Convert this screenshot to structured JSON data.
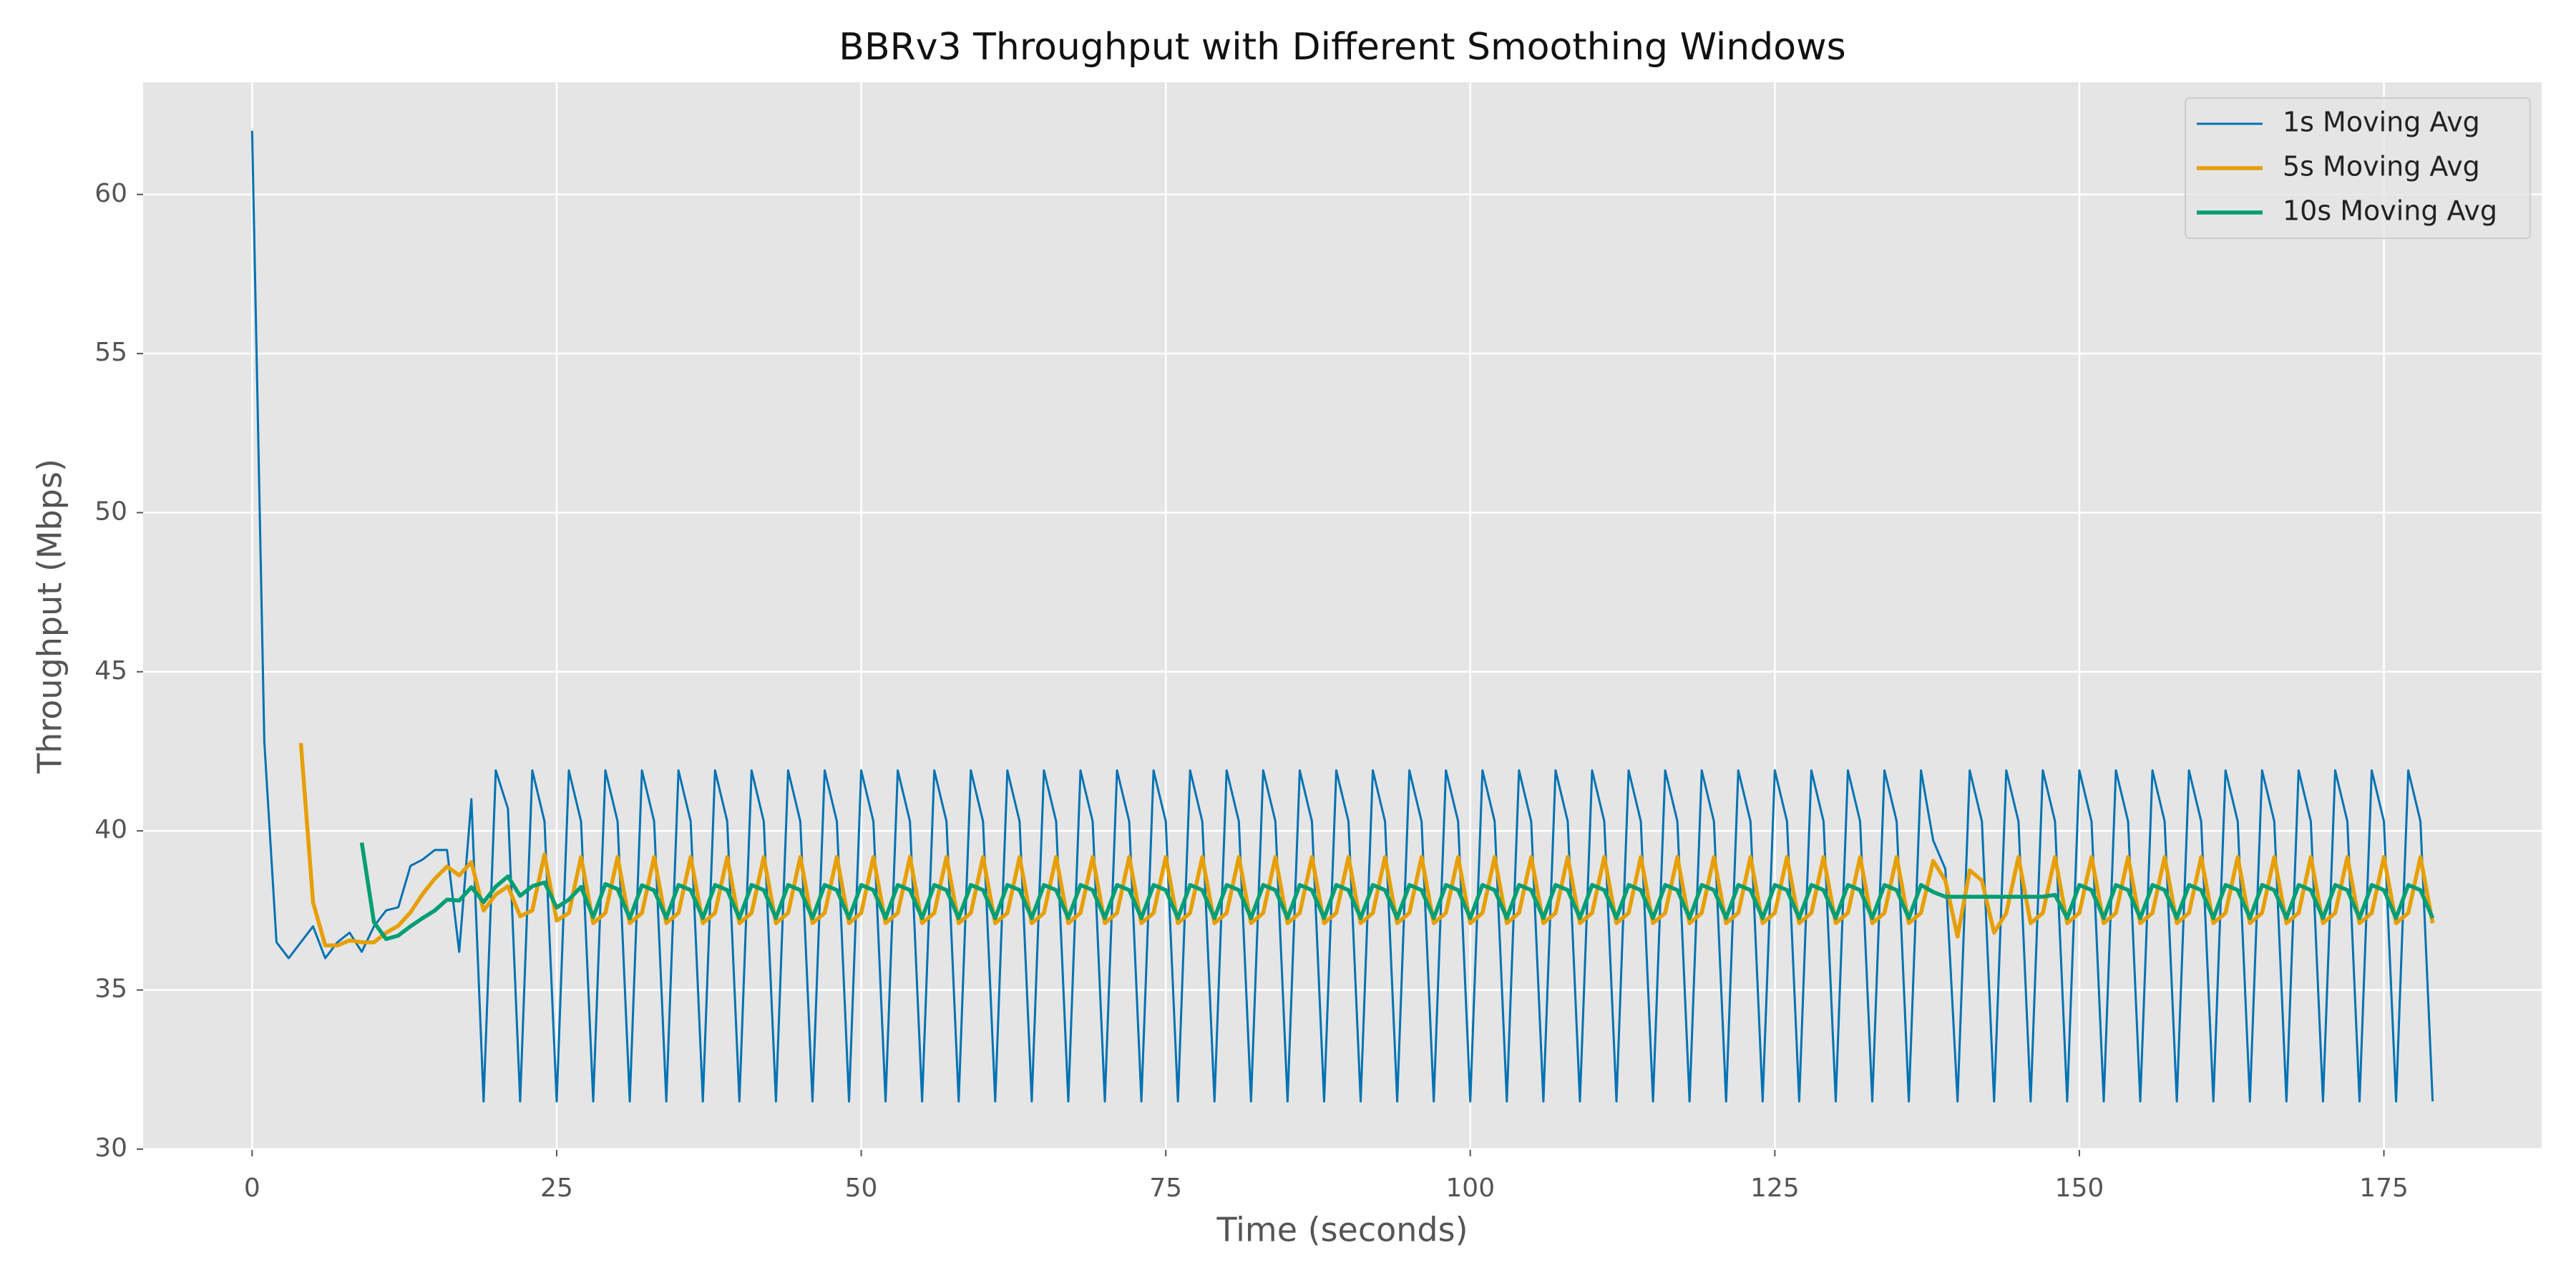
{
  "chart_data": {
    "type": "line",
    "title": "BBRv3 Throughput with Different Smoothing Windows",
    "x_label": "Time (seconds)",
    "y_label": "Throughput (Mbps)",
    "xlim": [
      -8.95,
      187.95
    ],
    "ylim": [
      29.975,
      63.525
    ],
    "xticks": [
      0,
      25,
      50,
      75,
      100,
      125,
      150,
      175
    ],
    "yticks": [
      30,
      35,
      40,
      45,
      50,
      55,
      60
    ],
    "grid": true,
    "legend": "upper right",
    "x": [
      0,
      1,
      2,
      3,
      4,
      5,
      6,
      7,
      8,
      9,
      10,
      11,
      12,
      13,
      14,
      15,
      16,
      17,
      18,
      19,
      20,
      21,
      22,
      23,
      24,
      25,
      26,
      27,
      28,
      29,
      30,
      31,
      32,
      33,
      34,
      35,
      36,
      37,
      38,
      39,
      40,
      41,
      42,
      43,
      44,
      45,
      46,
      47,
      48,
      49,
      50,
      51,
      52,
      53,
      54,
      55,
      56,
      57,
      58,
      59,
      60,
      61,
      62,
      63,
      64,
      65,
      66,
      67,
      68,
      69,
      70,
      71,
      72,
      73,
      74,
      75,
      76,
      77,
      78,
      79,
      80,
      81,
      82,
      83,
      84,
      85,
      86,
      87,
      88,
      89,
      90,
      91,
      92,
      93,
      94,
      95,
      96,
      97,
      98,
      99,
      100,
      101,
      102,
      103,
      104,
      105,
      106,
      107,
      108,
      109,
      110,
      111,
      112,
      113,
      114,
      115,
      116,
      117,
      118,
      119,
      120,
      121,
      122,
      123,
      124,
      125,
      126,
      127,
      128,
      129,
      130,
      131,
      132,
      133,
      134,
      135,
      136,
      137,
      138,
      139,
      140,
      141,
      142,
      143,
      144,
      145,
      146,
      147,
      148,
      149,
      150,
      151,
      152,
      153,
      154,
      155,
      156,
      157,
      158,
      159,
      160,
      161,
      162,
      163,
      164,
      165,
      166,
      167,
      168,
      169,
      170,
      171,
      172,
      173,
      174,
      175,
      176,
      177,
      178,
      179
    ],
    "series": [
      {
        "name": "1s Moving Avg",
        "color": "#0072B2",
        "values": [
          62,
          42.8,
          36.5,
          36,
          36.5,
          37,
          36,
          36.5,
          36.8,
          36.2,
          37,
          37.5,
          37.6,
          38.9,
          39.1,
          39.4,
          39.4,
          36.2,
          41,
          31.5,
          41.9,
          40.7,
          31.5,
          41.9,
          40.3,
          31.5,
          41.9,
          40.3,
          31.5,
          41.9,
          40.3,
          31.5,
          41.9,
          40.3,
          31.5,
          41.9,
          40.3,
          31.5,
          41.9,
          40.3,
          31.5,
          41.9,
          40.3,
          31.5,
          41.9,
          40.3,
          31.5,
          41.9,
          40.3,
          31.5,
          41.9,
          40.3,
          31.5,
          41.9,
          40.3,
          31.5,
          41.9,
          40.3,
          31.5,
          41.9,
          40.3,
          31.5,
          41.9,
          40.3,
          31.5,
          41.9,
          40.3,
          31.5,
          41.9,
          40.3,
          31.5,
          41.9,
          40.3,
          31.5,
          41.9,
          40.3,
          31.5,
          41.9,
          40.3,
          31.5,
          41.9,
          40.3,
          31.5,
          41.9,
          40.3,
          31.5,
          41.9,
          40.3,
          31.5,
          41.9,
          40.3,
          31.5,
          41.9,
          40.3,
          31.5,
          41.9,
          40.3,
          31.5,
          41.9,
          40.3,
          31.5,
          41.9,
          40.3,
          31.5,
          41.9,
          40.3,
          31.5,
          41.9,
          40.3,
          31.5,
          41.9,
          40.3,
          31.5,
          41.9,
          40.3,
          31.5,
          41.9,
          40.3,
          31.5,
          41.9,
          40.3,
          31.5,
          41.9,
          40.3,
          31.5,
          41.9,
          40.3,
          31.5,
          41.9,
          40.3,
          31.5,
          41.9,
          40.3,
          31.5,
          41.9,
          40.3,
          31.5,
          41.9,
          39.7,
          38.8,
          31.5,
          41.9,
          40.3,
          31.5,
          41.9,
          40.3,
          31.5,
          41.9,
          40.3,
          31.5,
          41.9,
          40.3,
          31.5,
          41.9,
          40.3,
          31.5,
          41.9,
          40.3,
          31.5,
          41.9,
          40.3,
          31.5,
          41.9,
          40.3,
          31.5,
          41.9,
          40.3,
          31.5,
          41.9,
          40.3,
          31.5,
          41.9,
          40.3,
          31.5,
          41.9,
          40.3,
          31.5,
          41.9,
          40.3,
          31.5
        ]
      },
      {
        "name": "5s Moving Avg",
        "color": "#E69F00",
        "values": [
          null,
          null,
          null,
          null,
          42.76,
          37.76,
          36.4,
          36.4,
          36.56,
          36.5,
          36.5,
          36.8,
          37.02,
          37.44,
          38.02,
          38.5,
          38.88,
          38.6,
          39.02,
          37.5,
          38,
          38.26,
          37.32,
          37.5,
          39.26,
          37.18,
          37.42,
          39.18,
          37.1,
          37.42,
          39.18,
          37.1,
          37.42,
          39.18,
          37.1,
          37.42,
          39.18,
          37.1,
          37.42,
          39.18,
          37.1,
          37.42,
          39.18,
          37.1,
          37.42,
          39.18,
          37.1,
          37.42,
          39.18,
          37.1,
          37.42,
          39.18,
          37.1,
          37.42,
          39.18,
          37.1,
          37.42,
          39.18,
          37.1,
          37.42,
          39.18,
          37.1,
          37.42,
          39.18,
          37.1,
          37.42,
          39.18,
          37.1,
          37.42,
          39.18,
          37.1,
          37.42,
          39.18,
          37.1,
          37.42,
          39.18,
          37.1,
          37.42,
          39.18,
          37.1,
          37.42,
          39.18,
          37.1,
          37.42,
          39.18,
          37.1,
          37.42,
          39.18,
          37.1,
          37.42,
          39.18,
          37.1,
          37.42,
          39.18,
          37.1,
          37.42,
          39.18,
          37.1,
          37.42,
          39.18,
          37.1,
          37.42,
          39.18,
          37.1,
          37.42,
          39.18,
          37.1,
          37.42,
          39.18,
          37.1,
          37.42,
          39.18,
          37.1,
          37.42,
          39.18,
          37.1,
          37.42,
          39.18,
          37.1,
          37.42,
          39.18,
          37.1,
          37.42,
          39.18,
          37.1,
          37.42,
          39.18,
          37.1,
          37.42,
          39.18,
          37.1,
          37.42,
          39.18,
          37.1,
          37.42,
          39.18,
          37.1,
          37.42,
          39.06,
          38.44,
          36.68,
          38.76,
          38.44,
          36.8,
          37.42,
          39.18,
          37.1,
          37.42,
          39.18,
          37.1,
          37.42,
          39.18,
          37.1,
          37.42,
          39.18,
          37.1,
          37.42,
          39.18,
          37.1,
          37.42,
          39.18,
          37.1,
          37.42,
          39.18,
          37.1,
          37.42,
          39.18,
          37.1,
          37.42,
          39.18,
          37.1,
          37.42,
          39.18,
          37.1,
          37.42,
          39.18,
          37.1,
          37.42,
          39.18,
          37.1
        ]
      },
      {
        "name": "10s Moving Avg",
        "color": "#009E73",
        "values": [
          null,
          null,
          null,
          null,
          null,
          null,
          null,
          null,
          null,
          39.63,
          37.13,
          36.6,
          36.71,
          37,
          37.26,
          37.5,
          37.84,
          37.81,
          38.23,
          37.76,
          38.25,
          38.57,
          37.96,
          38.26,
          38.38,
          37.59,
          37.84,
          38.24,
          37.29,
          38.33,
          38.17,
          37.25,
          38.29,
          38.13,
          37.26,
          38.3,
          38.14,
          37.26,
          38.3,
          38.14,
          37.26,
          38.3,
          38.14,
          37.26,
          38.3,
          38.14,
          37.26,
          38.3,
          38.14,
          37.26,
          38.3,
          38.14,
          37.26,
          38.3,
          38.14,
          37.26,
          38.3,
          38.14,
          37.26,
          38.3,
          38.14,
          37.26,
          38.3,
          38.14,
          37.26,
          38.3,
          38.14,
          37.26,
          38.3,
          38.14,
          37.26,
          38.3,
          38.14,
          37.26,
          38.3,
          38.14,
          37.26,
          38.3,
          38.14,
          37.26,
          38.3,
          38.14,
          37.26,
          38.3,
          38.14,
          37.26,
          38.3,
          38.14,
          37.26,
          38.3,
          38.14,
          37.26,
          38.3,
          38.14,
          37.26,
          38.3,
          38.14,
          37.26,
          38.3,
          38.14,
          37.26,
          38.3,
          38.14,
          37.26,
          38.3,
          38.14,
          37.26,
          38.3,
          38.14,
          37.26,
          38.3,
          38.14,
          37.26,
          38.3,
          38.14,
          37.26,
          38.3,
          38.14,
          37.26,
          38.3,
          38.14,
          37.26,
          38.3,
          38.14,
          37.26,
          38.3,
          38.14,
          37.26,
          38.3,
          38.14,
          37.26,
          38.3,
          38.14,
          37.26,
          38.3,
          38.14,
          37.26,
          38.3,
          38.08,
          37.93,
          37.93,
          37.93,
          37.93,
          37.93,
          37.93,
          37.93,
          37.93,
          37.93,
          37.99,
          37.26,
          38.3,
          38.14,
          37.26,
          38.3,
          38.14,
          37.26,
          38.3,
          38.14,
          37.26,
          38.3,
          38.14,
          37.26,
          38.3,
          38.14,
          37.26,
          38.3,
          38.14,
          37.26,
          38.3,
          38.14,
          37.26,
          38.3,
          38.14,
          37.26,
          38.3,
          38.14,
          37.26,
          38.3,
          38.14,
          37.26
        ]
      }
    ]
  }
}
